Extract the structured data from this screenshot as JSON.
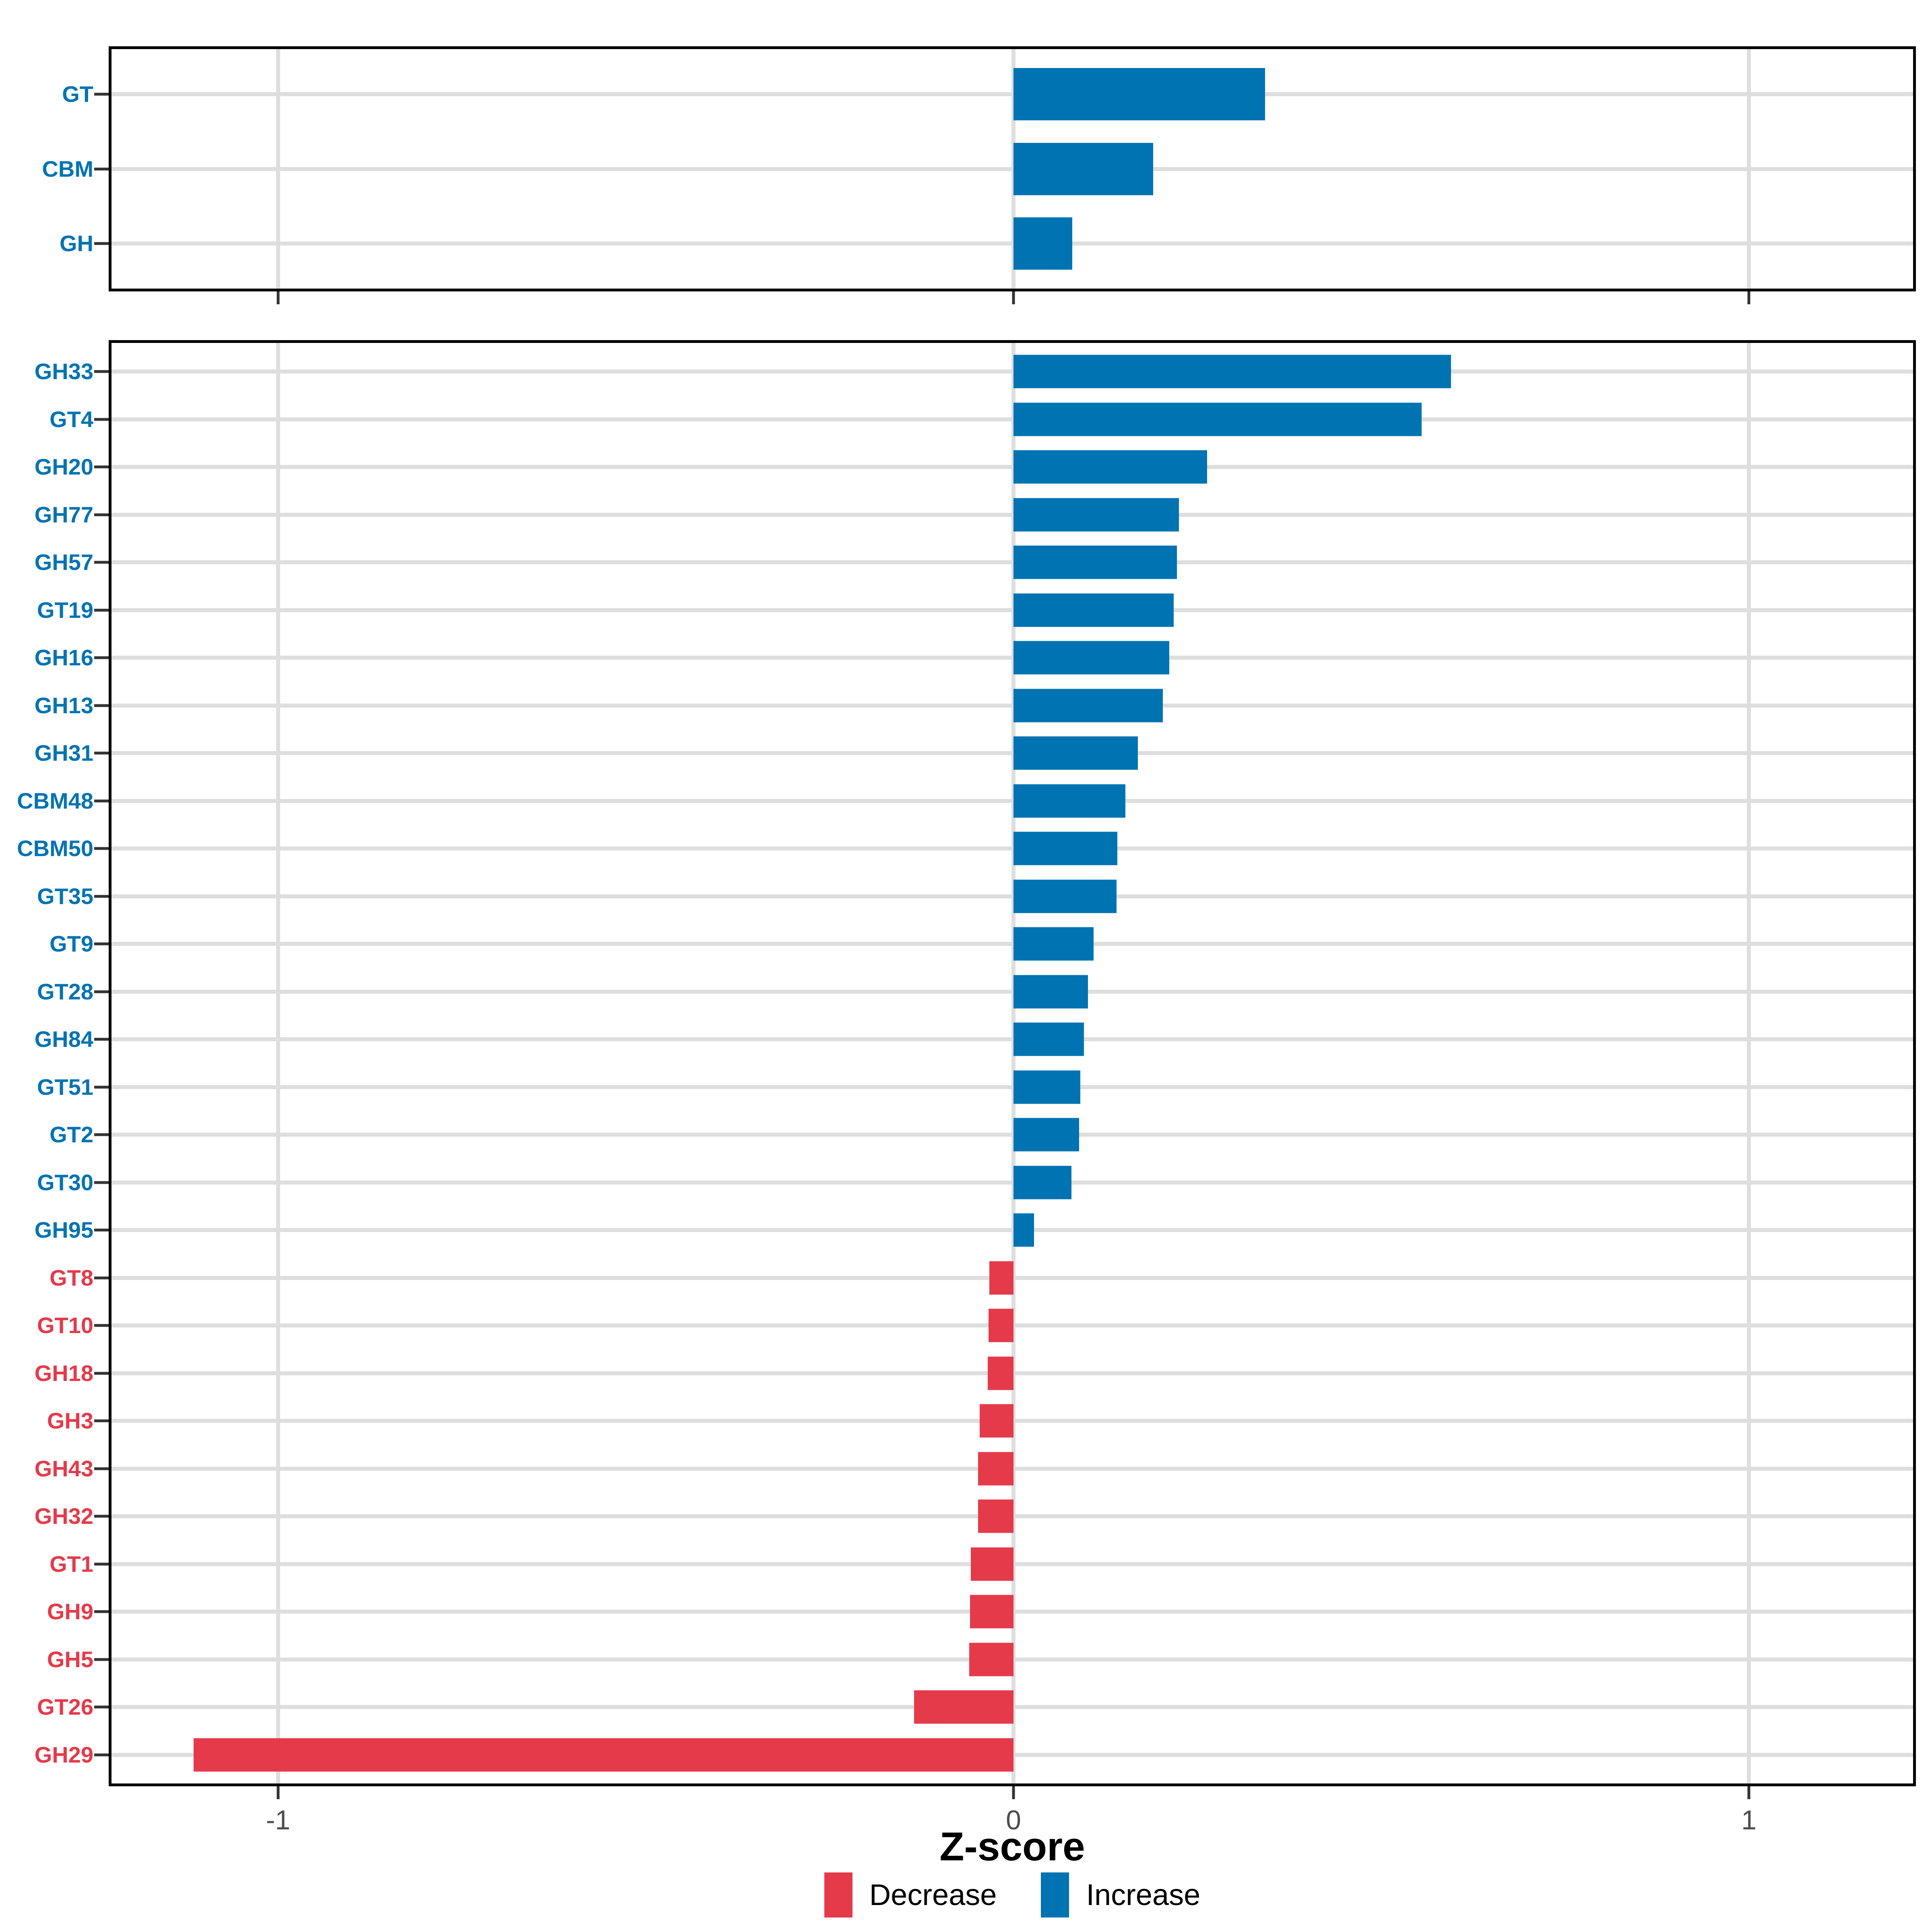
{
  "chart_data": {
    "type": "bar",
    "orientation": "horizontal",
    "title": "",
    "xlabel": "Z-score",
    "ylabel": "",
    "xlim": [
      -1.226,
      1.223
    ],
    "grid": "major vertical at -1,0,1; light horizontal line per category row",
    "legend_position": "bottom",
    "x_ticks": [
      {
        "value": -1,
        "label": "-1"
      },
      {
        "value": 0,
        "label": "0"
      },
      {
        "value": 1,
        "label": "1"
      }
    ],
    "legend": [
      {
        "key": "decrease",
        "label": "Decrease"
      },
      {
        "key": "increase",
        "label": "Increase"
      }
    ],
    "panels": [
      {
        "name": "enzyme-classes",
        "rows": [
          {
            "label": "GT",
            "value": 0.342,
            "direction": "increase"
          },
          {
            "label": "CBM",
            "value": 0.19,
            "direction": "increase"
          },
          {
            "label": "GH",
            "value": 0.08,
            "direction": "increase"
          }
        ]
      },
      {
        "name": "enzyme-families",
        "rows": [
          {
            "label": "GH33",
            "value": 0.595,
            "direction": "increase"
          },
          {
            "label": "GT4",
            "value": 0.555,
            "direction": "increase"
          },
          {
            "label": "GH20",
            "value": 0.263,
            "direction": "increase"
          },
          {
            "label": "GH77",
            "value": 0.225,
            "direction": "increase"
          },
          {
            "label": "GH57",
            "value": 0.222,
            "direction": "increase"
          },
          {
            "label": "GT19",
            "value": 0.218,
            "direction": "increase"
          },
          {
            "label": "GH16",
            "value": 0.212,
            "direction": "increase"
          },
          {
            "label": "GH13",
            "value": 0.203,
            "direction": "increase"
          },
          {
            "label": "GH31",
            "value": 0.169,
            "direction": "increase"
          },
          {
            "label": "CBM48",
            "value": 0.152,
            "direction": "increase"
          },
          {
            "label": "CBM50",
            "value": 0.141,
            "direction": "increase"
          },
          {
            "label": "GT35",
            "value": 0.14,
            "direction": "increase"
          },
          {
            "label": "GT9",
            "value": 0.109,
            "direction": "increase"
          },
          {
            "label": "GT28",
            "value": 0.101,
            "direction": "increase"
          },
          {
            "label": "GH84",
            "value": 0.096,
            "direction": "increase"
          },
          {
            "label": "GT51",
            "value": 0.091,
            "direction": "increase"
          },
          {
            "label": "GT2",
            "value": 0.089,
            "direction": "increase"
          },
          {
            "label": "GT30",
            "value": 0.079,
            "direction": "increase"
          },
          {
            "label": "GH95",
            "value": 0.028,
            "direction": "increase"
          },
          {
            "label": "GT8",
            "value": -0.033,
            "direction": "decrease"
          },
          {
            "label": "GT10",
            "value": -0.034,
            "direction": "decrease"
          },
          {
            "label": "GH18",
            "value": -0.035,
            "direction": "decrease"
          },
          {
            "label": "GH3",
            "value": -0.046,
            "direction": "decrease"
          },
          {
            "label": "GH43",
            "value": -0.048,
            "direction": "decrease"
          },
          {
            "label": "GH32",
            "value": -0.048,
            "direction": "decrease"
          },
          {
            "label": "GT1",
            "value": -0.058,
            "direction": "decrease"
          },
          {
            "label": "GH9",
            "value": -0.059,
            "direction": "decrease"
          },
          {
            "label": "GH5",
            "value": -0.06,
            "direction": "decrease"
          },
          {
            "label": "GT26",
            "value": -0.135,
            "direction": "decrease"
          },
          {
            "label": "GH29",
            "value": -1.115,
            "direction": "decrease"
          }
        ]
      }
    ]
  },
  "colors": {
    "increase": "#0073B2",
    "decrease": "#E53A4A",
    "gridline": "#DEDEDE",
    "axis_text": "#4D4D4D",
    "tick_mark": "#333333",
    "panel_border": "#000000",
    "background": "#FFFFFF"
  }
}
